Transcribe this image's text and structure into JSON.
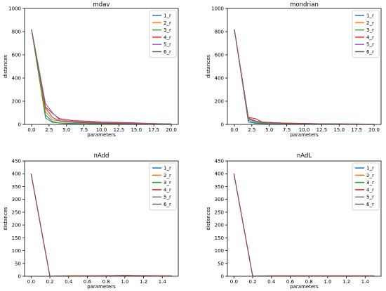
{
  "colors": {
    "1_r": "#1f77b4",
    "2_r": "#ff7f0e",
    "3_r": "#2ca02c",
    "4_r": "#d62728",
    "5_r": "#9467bd",
    "6_r": "#8c564b"
  },
  "chart_data": [
    {
      "type": "line",
      "title": "mdav",
      "xlabel": "parameters",
      "ylabel": "distances",
      "xlim": [
        -1,
        21
      ],
      "ylim": [
        0,
        1000
      ],
      "xticks": [
        0.0,
        2.5,
        5.0,
        7.5,
        10.0,
        12.5,
        15.0,
        17.5,
        20.0
      ],
      "xtick_labels": [
        "0.0",
        "2.5",
        "5.0",
        "7.5",
        "10.0",
        "12.5",
        "15.0",
        "17.5",
        "20.0"
      ],
      "yticks": [
        0,
        200,
        400,
        600,
        800,
        1000
      ],
      "ytick_labels": [
        "0",
        "200",
        "400",
        "600",
        "800",
        "1000"
      ],
      "legend": "top-right",
      "grid": false,
      "series": [
        {
          "name": "1_r",
          "points": [
            [
              0,
              820
            ],
            [
              2,
              80
            ],
            [
              3,
              25
            ],
            [
              4,
              12
            ],
            [
              6,
              8
            ],
            [
              10,
              5
            ],
            [
              15,
              3
            ],
            [
              20,
              2
            ]
          ]
        },
        {
          "name": "2_r",
          "points": [
            [
              0,
              820
            ],
            [
              2,
              110
            ],
            [
              3,
              40
            ],
            [
              5,
              20
            ],
            [
              8,
              15
            ],
            [
              12,
              12
            ],
            [
              16,
              8
            ],
            [
              20,
              5
            ]
          ]
        },
        {
          "name": "3_r",
          "points": [
            [
              0,
              820
            ],
            [
              2,
              55
            ],
            [
              3,
              18
            ],
            [
              5,
              8
            ],
            [
              10,
              4
            ],
            [
              20,
              2
            ]
          ]
        },
        {
          "name": "4_r",
          "points": [
            [
              0,
              820
            ],
            [
              2,
              150
            ],
            [
              3,
              95
            ],
            [
              4,
              50
            ],
            [
              6,
              32
            ],
            [
              8,
              28
            ],
            [
              10,
              20
            ],
            [
              14,
              15
            ],
            [
              18,
              6
            ],
            [
              20,
              3
            ]
          ]
        },
        {
          "name": "5_r",
          "points": [
            [
              0,
              820
            ],
            [
              2,
              180
            ],
            [
              3,
              100
            ],
            [
              4,
              40
            ],
            [
              6,
              25
            ],
            [
              8,
              20
            ],
            [
              12,
              12
            ],
            [
              20,
              5
            ]
          ]
        },
        {
          "name": "6_r",
          "points": [
            [
              0,
              820
            ],
            [
              2,
              140
            ],
            [
              3,
              60
            ],
            [
              4,
              30
            ],
            [
              6,
              18
            ],
            [
              10,
              10
            ],
            [
              15,
              6
            ],
            [
              20,
              2
            ]
          ]
        }
      ]
    },
    {
      "type": "line",
      "title": "mondrian",
      "xlabel": "parameters",
      "ylabel": "distances",
      "xlim": [
        -1,
        21
      ],
      "ylim": [
        0,
        1000
      ],
      "xticks": [
        0.0,
        2.5,
        5.0,
        7.5,
        10.0,
        12.5,
        15.0,
        17.5,
        20.0
      ],
      "xtick_labels": [
        "0.0",
        "2.5",
        "5.0",
        "7.5",
        "10.0",
        "12.5",
        "15.0",
        "17.5",
        "20.0"
      ],
      "yticks": [
        0,
        200,
        400,
        600,
        800,
        1000
      ],
      "ytick_labels": [
        "0",
        "200",
        "400",
        "600",
        "800",
        "1000"
      ],
      "legend": "top-right",
      "grid": false,
      "series": [
        {
          "name": "1_r",
          "points": [
            [
              0,
              820
            ],
            [
              2,
              20
            ],
            [
              3,
              10
            ],
            [
              5,
              5
            ],
            [
              10,
              3
            ],
            [
              20,
              1
            ]
          ]
        },
        {
          "name": "2_r",
          "points": [
            [
              0,
              820
            ],
            [
              2,
              50
            ],
            [
              3,
              30
            ],
            [
              4,
              15
            ],
            [
              7,
              10
            ],
            [
              12,
              6
            ],
            [
              20,
              2
            ]
          ]
        },
        {
          "name": "3_r",
          "points": [
            [
              0,
              820
            ],
            [
              2,
              35
            ],
            [
              3,
              15
            ],
            [
              5,
              8
            ],
            [
              10,
              4
            ],
            [
              20,
              1
            ]
          ]
        },
        {
          "name": "4_r",
          "points": [
            [
              0,
              820
            ],
            [
              2,
              60
            ],
            [
              3,
              50
            ],
            [
              4,
              20
            ],
            [
              7,
              12
            ],
            [
              12,
              6
            ],
            [
              20,
              2
            ]
          ]
        },
        {
          "name": "5_r",
          "points": [
            [
              0,
              820
            ],
            [
              2,
              45
            ],
            [
              3,
              25
            ],
            [
              5,
              10
            ],
            [
              10,
              5
            ],
            [
              20,
              1
            ]
          ]
        },
        {
          "name": "6_r",
          "points": [
            [
              0,
              820
            ],
            [
              2,
              55
            ],
            [
              3,
              30
            ],
            [
              4,
              18
            ],
            [
              8,
              8
            ],
            [
              14,
              4
            ],
            [
              20,
              1
            ]
          ]
        }
      ]
    },
    {
      "type": "line",
      "title": "nAdd",
      "xlabel": "parameters",
      "ylabel": "distances",
      "xlim": [
        -0.07,
        1.57
      ],
      "ylim": [
        0,
        450
      ],
      "xticks": [
        0.0,
        0.2,
        0.4,
        0.6,
        0.8,
        1.0,
        1.2,
        1.4
      ],
      "xtick_labels": [
        "0.0",
        "0.2",
        "0.4",
        "0.6",
        "0.8",
        "1.0",
        "1.2",
        "1.4"
      ],
      "yticks": [
        0,
        50,
        100,
        150,
        200,
        250,
        300,
        350,
        400,
        450
      ],
      "ytick_labels": [
        "0",
        "50",
        "100",
        "150",
        "200",
        "250",
        "300",
        "350",
        "400",
        "450"
      ],
      "legend": "top-right",
      "grid": false,
      "series": [
        {
          "name": "1_r",
          "points": [
            [
              0,
              400
            ],
            [
              0.2,
              0
            ],
            [
              0.5,
              1
            ],
            [
              0.8,
              1
            ],
            [
              1.0,
              3
            ],
            [
              1.2,
              1
            ],
            [
              1.5,
              1
            ]
          ]
        },
        {
          "name": "2_r",
          "points": [
            [
              0,
              400
            ],
            [
              0.2,
              0
            ],
            [
              0.4,
              2
            ],
            [
              0.8,
              2
            ],
            [
              1.0,
              4
            ],
            [
              1.2,
              2
            ],
            [
              1.5,
              2
            ]
          ]
        },
        {
          "name": "3_r",
          "points": [
            [
              0,
              400
            ],
            [
              0.2,
              0
            ],
            [
              0.6,
              1
            ],
            [
              1.0,
              2
            ],
            [
              1.5,
              1
            ]
          ]
        },
        {
          "name": "4_r",
          "points": [
            [
              0,
              400
            ],
            [
              0.2,
              0
            ],
            [
              0.6,
              1
            ],
            [
              1.0,
              2
            ],
            [
              1.5,
              1
            ]
          ]
        },
        {
          "name": "5_r",
          "points": [
            [
              0,
              400
            ],
            [
              0.2,
              0
            ],
            [
              0.6,
              1
            ],
            [
              1.0,
              3
            ],
            [
              1.5,
              1
            ]
          ]
        },
        {
          "name": "6_r",
          "points": [
            [
              0,
              400
            ],
            [
              0.2,
              0
            ],
            [
              0.4,
              1
            ],
            [
              0.8,
              1
            ],
            [
              1.0,
              2
            ],
            [
              1.5,
              1
            ]
          ]
        }
      ]
    },
    {
      "type": "line",
      "title": "nAdL",
      "xlabel": "parameters",
      "ylabel": "distances",
      "xlim": [
        -0.07,
        1.57
      ],
      "ylim": [
        0,
        450
      ],
      "xticks": [
        0.0,
        0.2,
        0.4,
        0.6,
        0.8,
        1.0,
        1.2,
        1.4
      ],
      "xtick_labels": [
        "0.0",
        "0.2",
        "0.4",
        "0.6",
        "0.8",
        "1.0",
        "1.2",
        "1.4"
      ],
      "yticks": [
        0,
        50,
        100,
        150,
        200,
        250,
        300,
        350,
        400,
        450
      ],
      "ytick_labels": [
        "0",
        "50",
        "100",
        "150",
        "200",
        "250",
        "300",
        "350",
        "400",
        "450"
      ],
      "legend": "top-right",
      "grid": false,
      "series": [
        {
          "name": "1_r",
          "points": [
            [
              0,
              400
            ],
            [
              0.2,
              0
            ],
            [
              0.6,
              1
            ],
            [
              1.0,
              1
            ],
            [
              1.5,
              1
            ]
          ]
        },
        {
          "name": "2_r",
          "points": [
            [
              0,
              400
            ],
            [
              0.2,
              0
            ],
            [
              0.4,
              2
            ],
            [
              0.8,
              2
            ],
            [
              1.2,
              2
            ],
            [
              1.5,
              2
            ]
          ]
        },
        {
          "name": "3_r",
          "points": [
            [
              0,
              400
            ],
            [
              0.2,
              0
            ],
            [
              0.6,
              1
            ],
            [
              1.0,
              1
            ],
            [
              1.5,
              1
            ]
          ]
        },
        {
          "name": "4_r",
          "points": [
            [
              0,
              400
            ],
            [
              0.2,
              0
            ],
            [
              0.6,
              1
            ],
            [
              1.0,
              1
            ],
            [
              1.5,
              1
            ]
          ]
        },
        {
          "name": "5_r",
          "points": [
            [
              0,
              400
            ],
            [
              0.2,
              0
            ],
            [
              0.6,
              1
            ],
            [
              1.0,
              1
            ],
            [
              1.5,
              1
            ]
          ]
        },
        {
          "name": "6_r",
          "points": [
            [
              0,
              400
            ],
            [
              0.2,
              0
            ],
            [
              0.6,
              1
            ],
            [
              1.0,
              1
            ],
            [
              1.5,
              1
            ]
          ]
        }
      ]
    }
  ]
}
